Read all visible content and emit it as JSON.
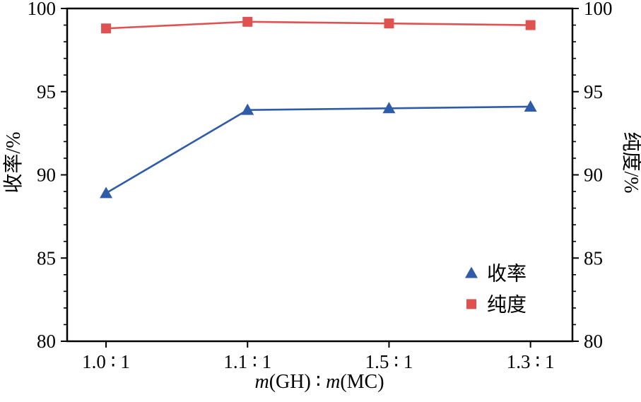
{
  "chart_data": {
    "type": "line",
    "categories": [
      "1.0 ∶ 1",
      "1.1 ∶ 1",
      "1.5 ∶ 1",
      "1.3 ∶ 1"
    ],
    "series": [
      {
        "id": "yield",
        "name": "收率",
        "marker": "triangle",
        "color": "#2f5ca8",
        "values": [
          88.9,
          93.9,
          94.0,
          94.1
        ]
      },
      {
        "id": "purity",
        "name": "纯度",
        "marker": "square",
        "color": "#e05252",
        "values": [
          98.8,
          99.2,
          99.1,
          99.0
        ]
      }
    ],
    "xlabel_text": "m(GH) ∶ m(MC)",
    "xlabel_parts": [
      {
        "text": "m",
        "italic": true
      },
      {
        "text": "(GH) ∶ ",
        "italic": false
      },
      {
        "text": "m",
        "italic": true
      },
      {
        "text": "(MC)",
        "italic": false
      }
    ],
    "ylabel_left": "收率/%",
    "ylabel_right": "纯度/%",
    "ylim": [
      80,
      100
    ],
    "yticks": [
      80,
      85,
      90,
      95,
      100
    ],
    "y_minor_step": 1,
    "grid": "off",
    "legend_position": "lower right",
    "axis_color": "#000000",
    "background_color": "#ffffff"
  }
}
